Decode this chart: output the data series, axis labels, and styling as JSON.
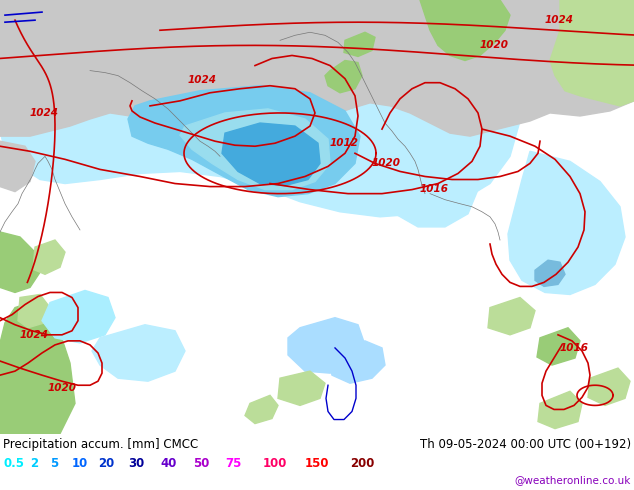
{
  "title_left": "Precipitation accum. [mm] CMCC",
  "title_right": "Th 09-05-2024 00:00 UTC (00+192)",
  "subtitle": "@weatheronline.co.uk",
  "legend_values": [
    "0.5",
    "2",
    "5",
    "10",
    "20",
    "30",
    "40",
    "50",
    "75",
    "100",
    "150",
    "200"
  ],
  "legend_colors": [
    "#00eeff",
    "#00ccff",
    "#0099ff",
    "#0066ff",
    "#0033cc",
    "#000099",
    "#6600cc",
    "#aa00cc",
    "#ff00ff",
    "#ff0066",
    "#ff0000",
    "#880000"
  ],
  "background_color": "#ffffff",
  "ocean_color": "#aaddff",
  "land_gray_color": "#c8c8c8",
  "land_green_color": "#99cc77",
  "land_green2_color": "#bbdd99",
  "precip_light_color": "#bbeeff",
  "precip_medium_color": "#77ccee",
  "precip_dark_color": "#44aadd",
  "isobar_color": "#cc0000",
  "coastline_color": "#777777",
  "fig_width": 6.34,
  "fig_height": 4.9,
  "label_fontsize": 8.5,
  "legend_fontsize": 8.5
}
